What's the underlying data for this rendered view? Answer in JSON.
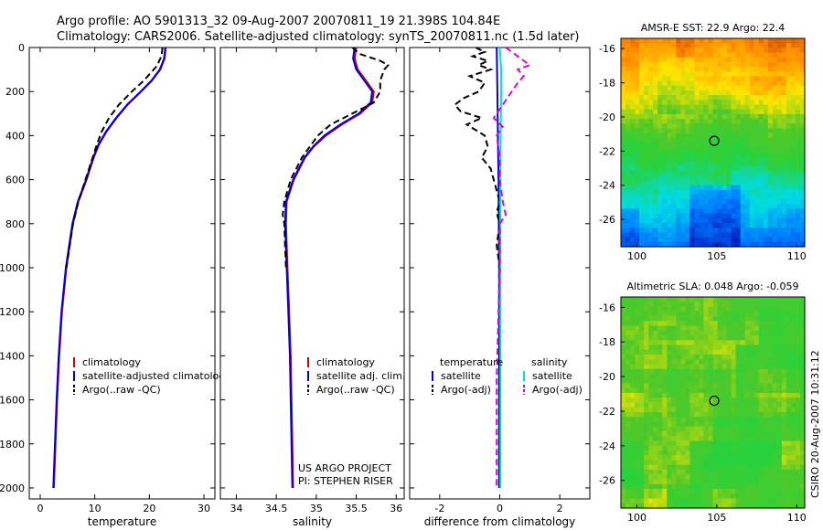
{
  "title_line1": "Argo profile: AO 5901313_32 09-Aug-2007 20070811_19 21.398S 104.84E",
  "title_line2": "Climatology: CARS2006. Satellite-adjusted climatology: synTS_20070811.nc (1.5d later)",
  "side_credit": "CSIRO 20-Aug-2007 10:31:12",
  "project_line1": "US ARGO PROJECT",
  "project_line2": "PI: STEPHEN RISER",
  "colors": {
    "climatology": "#cc0000",
    "satellite": "#0000dd",
    "argo": "#000000",
    "sat_diff": "#00dddd",
    "argo_diff_sal": "#dd00dd"
  },
  "chart_data": [
    {
      "type": "line",
      "id": "temperature",
      "xlabel": "temperature",
      "xlim": [
        -2,
        32
      ],
      "ylim": [
        2050,
        0
      ],
      "xticks": [
        "0",
        "10",
        "20",
        "30"
      ],
      "yticks": [
        "0",
        "200",
        "400",
        "600",
        "800",
        "1000",
        "1200",
        "1400",
        "1600",
        "1800",
        "2000"
      ],
      "legend": [
        "climatology",
        "satellite-adjusted climatology",
        "Argo(..raw -QC)"
      ],
      "series": [
        {
          "name": "climatology",
          "depth": [
            0,
            50,
            100,
            150,
            200,
            260,
            320,
            380,
            440,
            500,
            600,
            700,
            800,
            1000,
            1200,
            1400,
            1600,
            1800,
            2000
          ],
          "values": [
            23.0,
            22.8,
            22.0,
            20.5,
            18.5,
            16.0,
            14.0,
            12.2,
            10.8,
            9.8,
            8.5,
            7.0,
            6.0,
            4.8,
            4.0,
            3.5,
            3.1,
            2.8,
            2.5
          ]
        },
        {
          "name": "satellite-adjusted climatology",
          "depth": [
            0,
            50,
            100,
            150,
            200,
            260,
            320,
            380,
            440,
            500,
            600,
            700,
            800,
            1000,
            1200,
            1400,
            1600,
            1800,
            2000
          ],
          "values": [
            22.9,
            22.7,
            21.9,
            20.4,
            18.4,
            15.9,
            13.9,
            12.1,
            10.7,
            9.7,
            8.4,
            6.9,
            5.9,
            4.7,
            3.9,
            3.4,
            3.0,
            2.7,
            2.4
          ]
        },
        {
          "name": "Argo(..raw -QC)",
          "depth": [
            0,
            20,
            40,
            60,
            80,
            100,
            150,
            200,
            260,
            320,
            380,
            440,
            500,
            600,
            700,
            800,
            1000
          ],
          "values": [
            22.4,
            22.3,
            22.2,
            21.8,
            21.5,
            20.8,
            19.0,
            16.8,
            14.4,
            12.6,
            11.3,
            10.4,
            9.6,
            8.3,
            7.0,
            6.0,
            4.8
          ]
        }
      ]
    },
    {
      "type": "line",
      "id": "salinity",
      "xlabel": "salinity",
      "xlim": [
        33.8,
        36.1
      ],
      "ylim": [
        2050,
        0
      ],
      "xticks": [
        "34",
        "34.5",
        "35",
        "35.5",
        "36"
      ],
      "legend": [
        "climatology",
        "satellite adj. clim.",
        "Argo(..raw -QC)"
      ],
      "series": [
        {
          "name": "climatology",
          "depth": [
            0,
            50,
            100,
            150,
            200,
            250,
            300,
            350,
            400,
            450,
            500,
            600,
            700,
            800,
            1000,
            1200,
            1400,
            1600,
            1800,
            2000
          ],
          "values": [
            35.5,
            35.48,
            35.52,
            35.62,
            35.72,
            35.7,
            35.55,
            35.32,
            35.12,
            34.97,
            34.86,
            34.72,
            34.63,
            34.62,
            34.64,
            34.66,
            34.68,
            34.69,
            34.7,
            34.71
          ]
        },
        {
          "name": "satellite adj. clim.",
          "depth": [
            0,
            50,
            100,
            150,
            200,
            250,
            300,
            350,
            400,
            450,
            500,
            600,
            700,
            800,
            1000,
            1200,
            1400,
            1600,
            1800,
            2000
          ],
          "values": [
            35.48,
            35.46,
            35.5,
            35.6,
            35.7,
            35.68,
            35.53,
            35.3,
            35.1,
            34.96,
            34.85,
            34.71,
            34.62,
            34.61,
            34.63,
            34.65,
            34.67,
            34.68,
            34.69,
            34.7
          ]
        },
        {
          "name": "Argo(..raw -QC)",
          "depth": [
            0,
            30,
            60,
            80,
            100,
            150,
            200,
            250,
            300,
            350,
            400,
            450,
            500,
            600,
            700,
            760,
            800,
            1000
          ],
          "values": [
            35.45,
            35.55,
            35.8,
            35.9,
            35.85,
            35.8,
            35.8,
            35.72,
            35.45,
            35.18,
            35.02,
            34.92,
            34.82,
            34.68,
            34.6,
            34.58,
            34.6,
            34.62
          ]
        }
      ]
    },
    {
      "type": "line",
      "id": "difference",
      "xlabel": "difference from climatology",
      "xlim": [
        -3,
        3
      ],
      "ylim": [
        2050,
        0
      ],
      "xticks": [
        "-2",
        "0",
        "2"
      ],
      "legend_headers": [
        "temperature",
        "salinity"
      ],
      "legend_left": [
        "satellite",
        "Argo(-adj)"
      ],
      "legend_right": [
        "satellite",
        "Argo(-adj)"
      ],
      "series": [
        {
          "name": "temperature satellite",
          "depth": [
            0,
            200,
            400,
            600,
            800,
            1000,
            1500,
            2000
          ],
          "values": [
            -0.1,
            -0.08,
            -0.06,
            -0.04,
            -0.03,
            -0.02,
            -0.02,
            -0.02
          ]
        },
        {
          "name": "temperature Argo(-adj)",
          "depth": [
            0,
            20,
            40,
            60,
            80,
            100,
            130,
            160,
            200,
            230,
            260,
            290,
            320,
            350,
            400,
            450,
            500,
            550,
            600,
            650,
            700,
            750,
            800,
            900,
            1000
          ],
          "values": [
            -0.8,
            -0.5,
            -0.9,
            -0.4,
            -0.7,
            -0.3,
            -1.0,
            -0.5,
            -0.7,
            -1.2,
            -1.5,
            -1.3,
            -0.6,
            -1.1,
            -0.5,
            -0.4,
            -0.6,
            -0.3,
            -0.2,
            -0.1,
            0.0,
            -0.1,
            0.0,
            -0.1,
            0.0
          ]
        },
        {
          "name": "salinity satellite",
          "depth": [
            0,
            100,
            200,
            400,
            600,
            800,
            1000,
            1500,
            2000
          ],
          "values": [
            0.0,
            0.05,
            0.05,
            0.03,
            0.02,
            0.02,
            0.02,
            0.02,
            0.02
          ]
        },
        {
          "name": "salinity Argo(-adj)",
          "depth": [
            0,
            30,
            60,
            80,
            100,
            130,
            160,
            200,
            240,
            280,
            320,
            360,
            400,
            500,
            600,
            700,
            760,
            800,
            1000,
            1500,
            2000
          ],
          "values": [
            0.2,
            0.5,
            0.8,
            1.0,
            0.6,
            0.8,
            0.6,
            0.4,
            0.2,
            0.0,
            -0.2,
            0.1,
            -0.1,
            0.0,
            0.0,
            0.1,
            0.2,
            0.0,
            0.0,
            -0.1,
            -0.1
          ]
        }
      ]
    },
    {
      "type": "heatmap",
      "id": "sst_map",
      "title": "AMSR-E SST: 22.9 Argo: 22.4",
      "xlim": [
        99,
        110.5
      ],
      "ylim": [
        -27.6,
        -15.4
      ],
      "xticks": [
        "100",
        "105",
        "110"
      ],
      "yticks": [
        "-16",
        "-18",
        "-20",
        "-22",
        "-24",
        "-26"
      ],
      "marker": {
        "lon": 104.84,
        "lat": -21.398
      }
    },
    {
      "type": "heatmap",
      "id": "sla_map",
      "title": "Altimetric SLA: 0.048 Argo: -0.059",
      "xlim": [
        99,
        110.5
      ],
      "ylim": [
        -27.6,
        -15.4
      ],
      "xticks": [
        "100",
        "105",
        "110"
      ],
      "yticks": [
        "-16",
        "-18",
        "-20",
        "-22",
        "-24",
        "-26"
      ],
      "marker": {
        "lon": 104.84,
        "lat": -21.398
      }
    }
  ]
}
